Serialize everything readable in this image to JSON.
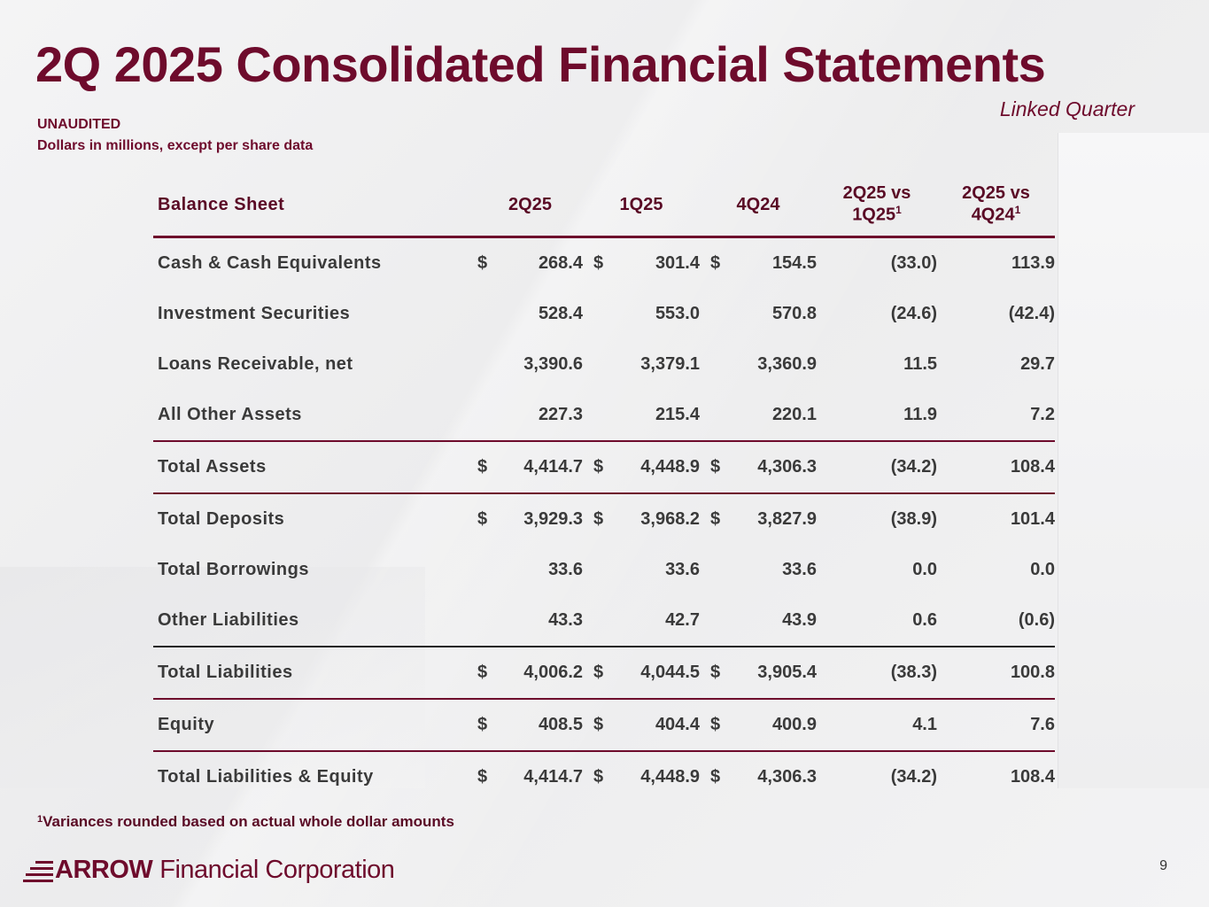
{
  "title": "2Q 2025 Consolidated Financial Statements",
  "subtitle_right": "Linked Quarter",
  "note_unaudited": "UNAUDITED",
  "note_units": "Dollars in millions, except per share data",
  "table": {
    "header": {
      "label": "Balance Sheet",
      "c1": "2Q25",
      "c2": "1Q25",
      "c3": "4Q24",
      "v1_line1": "2Q25 vs",
      "v1_line2": "1Q25",
      "v1_sup": "1",
      "v2_line1": "2Q25 vs",
      "v2_line2": "4Q24",
      "v2_sup": "1"
    },
    "rows": [
      {
        "label": "Cash & Cash Equivalents",
        "cur": "$",
        "c1": "268.4",
        "c2": "301.4",
        "c3": "154.5",
        "v1": "(33.0)",
        "v2": "113.9"
      },
      {
        "label": "Investment Securities",
        "cur": "",
        "c1": "528.4",
        "c2": "553.0",
        "c3": "570.8",
        "v1": "(24.6)",
        "v2": "(42.4)"
      },
      {
        "label": "Loans Receivable, net",
        "cur": "",
        "c1": "3,390.6",
        "c2": "3,379.1",
        "c3": "3,360.9",
        "v1": "11.5",
        "v2": "29.7"
      },
      {
        "label": "All Other Assets",
        "cur": "",
        "c1": "227.3",
        "c2": "215.4",
        "c3": "220.1",
        "v1": "11.9",
        "v2": "7.2"
      },
      {
        "label": "Total Assets",
        "cur": "$",
        "c1": "4,414.7",
        "c2": "4,448.9",
        "c3": "4,306.3",
        "v1": "(34.2)",
        "v2": "108.4"
      },
      {
        "label": "Total Deposits",
        "cur": "$",
        "c1": "3,929.3",
        "c2": "3,968.2",
        "c3": "3,827.9",
        "v1": "(38.9)",
        "v2": "101.4"
      },
      {
        "label": "Total Borrowings",
        "cur": "",
        "c1": "33.6",
        "c2": "33.6",
        "c3": "33.6",
        "v1": "0.0",
        "v2": "0.0"
      },
      {
        "label": "Other Liabilities",
        "cur": "",
        "c1": "43.3",
        "c2": "42.7",
        "c3": "43.9",
        "v1": "0.6",
        "v2": "(0.6)"
      },
      {
        "label": "Total Liabilities",
        "cur": "$",
        "c1": "4,006.2",
        "c2": "4,044.5",
        "c3": "3,905.4",
        "v1": "(38.3)",
        "v2": "100.8"
      },
      {
        "label": "Equity",
        "cur": "$",
        "c1": "408.5",
        "c2": "404.4",
        "c3": "400.9",
        "v1": "4.1",
        "v2": "7.6"
      },
      {
        "label": "Total Liabilities & Equity",
        "cur": "$",
        "c1": "4,414.7",
        "c2": "4,448.9",
        "c3": "4,306.3",
        "v1": "(34.2)",
        "v2": "108.4"
      }
    ]
  },
  "footnote_mark": "1",
  "footnote": "Variances rounded based on actual whole dollar amounts",
  "logo": {
    "brand": "ARROW",
    "text": "Financial Corporation"
  },
  "page_number": "9",
  "colors": {
    "brand": "#6e0b2c",
    "text": "#3a3a3a"
  }
}
